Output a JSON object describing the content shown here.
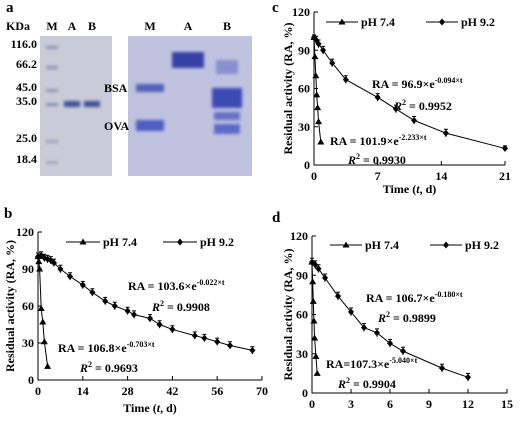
{
  "gel": {
    "panel_label": "a",
    "unit": "KDa",
    "left_lanes": [
      "M",
      "A",
      "B"
    ],
    "markers": [
      "116.0",
      "66.2",
      "45.0",
      "35.0",
      "25.0",
      "18.4"
    ],
    "right_lanes": [
      "M",
      "A",
      "B"
    ],
    "bands": [
      "BSA",
      "OVA"
    ]
  },
  "chart_data": [
    {
      "type": "line",
      "panel_label": "b",
      "y_label": "Residual activity (RA, %)",
      "x_label": [
        "Time (",
        "t",
        ", d)"
      ],
      "xlim": [
        0,
        70
      ],
      "xticks": [
        0,
        14,
        28,
        42,
        56,
        70
      ],
      "ylim": [
        0,
        120
      ],
      "yticks": [
        0,
        30,
        60,
        90,
        120
      ],
      "legend": "top",
      "series": [
        {
          "name": "pH 7.4",
          "marker": "triangle",
          "color": "#000000",
          "x": [
            0,
            0.25,
            0.5,
            1,
            1.5,
            2,
            3
          ],
          "values": [
            100,
            96,
            90,
            58,
            47,
            31,
            11
          ]
        },
        {
          "name": "pH 9.2",
          "marker": "diamond",
          "color": "#000000",
          "x": [
            0,
            1,
            2,
            3,
            4,
            5,
            7,
            10,
            14,
            17,
            21,
            24,
            28,
            30,
            35,
            38,
            42,
            49,
            52,
            56,
            60,
            67
          ],
          "values": [
            100,
            101,
            99,
            98,
            97,
            95,
            90,
            84,
            77,
            71,
            64,
            60,
            56,
            53,
            50,
            45,
            41,
            36,
            34,
            31,
            28,
            24
          ],
          "errors": [
            3,
            3,
            3,
            3,
            3,
            3,
            3,
            3,
            3,
            3,
            3,
            3,
            3,
            3,
            3,
            3,
            3,
            3,
            3,
            3,
            3,
            3
          ]
        }
      ],
      "annotations": [
        {
          "base": "RA = 103.6×e",
          "exponent": "-0.022×t"
        },
        {
          "base": "R",
          "exponent": "2",
          "tail": " = 0.9908"
        },
        {
          "base": "RA = 106.8×e",
          "exponent": "-0.703×t"
        },
        {
          "base": "R",
          "exponent": "2",
          "tail": " = 0.9693"
        }
      ]
    },
    {
      "type": "line",
      "panel_label": "c",
      "y_label": "Residual activity (RA, %)",
      "x_label": [
        "Time (",
        "t",
        ", d)"
      ],
      "xlim": [
        0,
        21
      ],
      "xticks": [
        0,
        7,
        14,
        21
      ],
      "ylim": [
        0,
        120
      ],
      "yticks": [
        0,
        30,
        60,
        90,
        120
      ],
      "legend": "top",
      "series": [
        {
          "name": "pH 7.4",
          "marker": "triangle",
          "color": "#000000",
          "x": [
            0,
            0.1,
            0.2,
            0.3,
            0.4,
            0.5,
            0.75
          ],
          "values": [
            100,
            85,
            70,
            55,
            45,
            34,
            18
          ]
        },
        {
          "name": "pH 9.2",
          "marker": "diamond",
          "color": "#000000",
          "x": [
            0,
            0.25,
            0.5,
            1,
            2,
            3.5,
            7,
            9,
            11,
            14.5,
            21
          ],
          "values": [
            100,
            98,
            95,
            90,
            80,
            67,
            53,
            44,
            35,
            25,
            13
          ],
          "errors": [
            2,
            3,
            3,
            3,
            3,
            3,
            3,
            3,
            3,
            3,
            2
          ]
        }
      ],
      "annotations": [
        {
          "base": "RA = 96.9×e",
          "exponent": "-0.094×t"
        },
        {
          "base": "R",
          "exponent": "2",
          "tail": " = 0.9952"
        },
        {
          "base": "RA = 101.9×e",
          "exponent": "-2.233×t"
        },
        {
          "base": "R",
          "exponent": "2",
          "tail": " = 0.9930"
        }
      ]
    },
    {
      "type": "line",
      "panel_label": "d",
      "y_label": "Residual activity (RA, %)",
      "xlim": [
        0,
        15
      ],
      "xticks": [
        0,
        3,
        6,
        9,
        12,
        15
      ],
      "ylim": [
        0,
        120
      ],
      "yticks": [
        0,
        30,
        60,
        90,
        120
      ],
      "legend": "top",
      "series": [
        {
          "name": "pH 7.4",
          "marker": "triangle",
          "color": "#000000",
          "x": [
            0,
            0.05,
            0.1,
            0.15,
            0.2,
            0.3,
            0.4
          ],
          "values": [
            100,
            85,
            70,
            55,
            42,
            28,
            15
          ]
        },
        {
          "name": "pH 9.2",
          "marker": "diamond",
          "color": "#000000",
          "x": [
            0,
            0.25,
            0.5,
            1,
            2,
            3,
            4,
            5,
            6,
            7,
            10,
            12
          ],
          "values": [
            100,
            98,
            95,
            88,
            74,
            62,
            50,
            46,
            38,
            32,
            19,
            12
          ],
          "errors": [
            3,
            3,
            3,
            3,
            3,
            3,
            3,
            3,
            3,
            3,
            3,
            3
          ]
        }
      ],
      "annotations": [
        {
          "base": "RA = 106.7×e",
          "exponent": "-0.180×t"
        },
        {
          "base": "R",
          "exponent": "2",
          "tail": " = 0.9899"
        },
        {
          "base": "RA=107.3×e",
          "exponent": "-5.040×t"
        },
        {
          "base": "R",
          "exponent": "2",
          "tail": " = 0.9904"
        }
      ]
    }
  ]
}
